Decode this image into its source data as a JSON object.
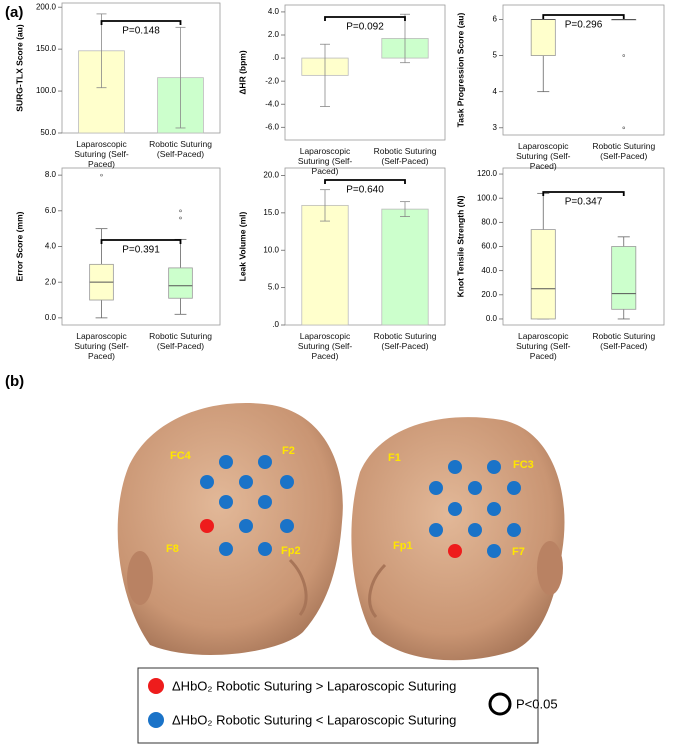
{
  "panel_labels": [
    "(a)",
    "(b)"
  ],
  "chart_data": [
    {
      "type": "bar",
      "ylabel": "SURG-TLX Score (au)",
      "categories": [
        "Laparoscopic Suturing (Self-Paced)",
        "Robotic Suturing (Self-Paced)"
      ],
      "values": [
        148,
        116
      ],
      "errors": [
        44,
        60
      ],
      "colors": [
        "#ffffcc",
        "#ccffcc"
      ],
      "ylim": [
        50,
        205
      ],
      "yticks": [
        {
          "value": 50,
          "label": "50.0"
        },
        {
          "value": 100,
          "label": "100.0"
        },
        {
          "value": 150,
          "label": "150.0"
        },
        {
          "value": 200,
          "label": "200.0"
        }
      ],
      "annotation": "P=0.148"
    },
    {
      "type": "bar",
      "ylabel": "ΔHR (bpm)",
      "categories": [
        "Laparoscopic Suturing (Self-Paced)",
        "Robotic Suturing (Self-Paced)"
      ],
      "values": [
        -1.5,
        1.7
      ],
      "errors": [
        2.7,
        2.1
      ],
      "colors": [
        "#ffffcc",
        "#ccffcc"
      ],
      "ylim": [
        -7.1,
        4.6
      ],
      "yticks": [
        {
          "value": -6,
          "label": "-6.0"
        },
        {
          "value": -4,
          "label": "-4.0"
        },
        {
          "value": -2,
          "label": "-2.0"
        },
        {
          "value": 0,
          "label": ".0"
        },
        {
          "value": 2,
          "label": "2.0"
        },
        {
          "value": 4,
          "label": "4.0"
        }
      ],
      "annotation": "P=0.092"
    },
    {
      "type": "box",
      "ylabel": "Task Progression Score (au)",
      "categories": [
        "Laparoscopic Suturing (Self-Paced)",
        "Robotic Suturing (Self-Paced)"
      ],
      "boxes": [
        {
          "min": 4,
          "q1": 5,
          "median": 6,
          "q3": 6,
          "max": 6,
          "outliers": []
        },
        {
          "min": 6,
          "q1": 6,
          "median": 6,
          "q3": 6,
          "max": 6,
          "outliers": [
            5,
            3
          ]
        }
      ],
      "colors": [
        "#ffffcc",
        "#ccffcc"
      ],
      "ylim": [
        2.8,
        6.4
      ],
      "yticks": [
        3,
        4,
        5,
        6
      ],
      "annotation": "P=0.296"
    },
    {
      "type": "box",
      "ylabel": "Error Score (mm)",
      "categories": [
        "Laparoscopic Suturing (Self-Paced)",
        "Robotic Suturing (Self-Paced)"
      ],
      "boxes": [
        {
          "min": 0,
          "q1": 1.0,
          "median": 2.0,
          "q3": 3.0,
          "max": 5.0,
          "outliers": [
            8.0
          ]
        },
        {
          "min": 0.2,
          "q1": 1.1,
          "median": 1.8,
          "q3": 2.8,
          "max": 4.4,
          "outliers": [
            5.6,
            6.0
          ]
        }
      ],
      "colors": [
        "#ffffcc",
        "#ccffcc"
      ],
      "ylim": [
        -0.4,
        8.4
      ],
      "yticks": [
        {
          "value": 0,
          "label": "0.0"
        },
        {
          "value": 2,
          "label": "2.0"
        },
        {
          "value": 4,
          "label": "4.0"
        },
        {
          "value": 6,
          "label": "6.0"
        },
        {
          "value": 8,
          "label": "8.0"
        }
      ],
      "annotation": "P=0.391"
    },
    {
      "type": "bar",
      "ylabel": "Leak Volume (ml)",
      "categories": [
        "Laparoscopic Suturing (Self-Paced)",
        "Robotic Suturing (Self-Paced)"
      ],
      "values": [
        16.0,
        15.5
      ],
      "errors": [
        2.1,
        1.0
      ],
      "colors": [
        "#ffffcc",
        "#ccffcc"
      ],
      "ylim": [
        0,
        21
      ],
      "yticks": [
        {
          "value": 0,
          "label": ".0"
        },
        {
          "value": 5,
          "label": "5.0"
        },
        {
          "value": 10,
          "label": "10.0"
        },
        {
          "value": 15,
          "label": "15.0"
        },
        {
          "value": 20,
          "label": "20.0"
        }
      ],
      "annotation": "P=0.640"
    },
    {
      "type": "box",
      "ylabel": "Knot Tensile Strength (N)",
      "categories": [
        "Laparoscopic Suturing (Self-Paced)",
        "Robotic Suturing (Self-Paced)"
      ],
      "boxes": [
        {
          "min": 0,
          "q1": 0,
          "median": 25,
          "q3": 74,
          "max": 104,
          "outliers": []
        },
        {
          "min": 0,
          "q1": 8,
          "median": 21,
          "q3": 60,
          "max": 68,
          "outliers": []
        }
      ],
      "colors": [
        "#ffffcc",
        "#ccffcc"
      ],
      "ylim": [
        -5,
        125
      ],
      "yticks": [
        {
          "value": 0,
          "label": "0.0"
        },
        {
          "value": 20,
          "label": "20.0"
        },
        {
          "value": 40,
          "label": "40.0"
        },
        {
          "value": 60,
          "label": "60.0"
        },
        {
          "value": 80,
          "label": "80.0"
        },
        {
          "value": 100,
          "label": "100.0"
        },
        {
          "value": 120,
          "label": "120.0"
        }
      ],
      "annotation": "P=0.347"
    }
  ],
  "head_labels": [
    "FC4",
    "F2",
    "F8",
    "Fp2",
    "F1",
    "FC3",
    "Fp1",
    "F7"
  ],
  "legend": {
    "items": [
      {
        "label": "ΔHbO₂ Robotic Suturing > Laparoscopic Suturing",
        "color": "#ee1c1c"
      },
      {
        "label": "ΔHbO₂ Robotic Suturing < Laparoscopic Suturing",
        "color": "#1a73c8"
      }
    ],
    "significance": "P<0.05"
  }
}
